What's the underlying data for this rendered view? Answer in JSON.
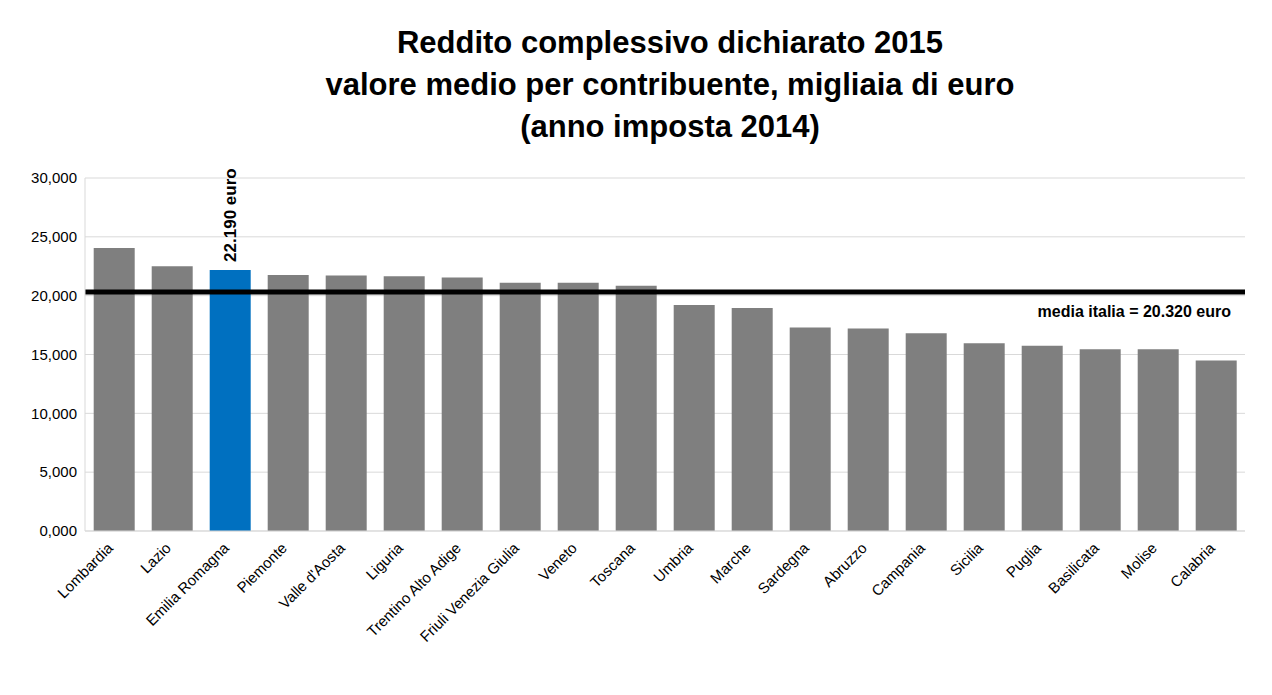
{
  "chart_data": {
    "type": "bar",
    "title": "Reddito complessivo dichiarato 2015\nvalore medio per contribuente, migliaia di euro\n(anno imposta 2014)",
    "categories": [
      "Lombardia",
      "Lazio",
      "Emilia Romagna",
      "Piemonte",
      "Valle d'Aosta",
      "Liguria",
      "Trentino Alto Adige",
      "Friuli Venezia Giulia",
      "Veneto",
      "Toscana",
      "Umbria",
      "Marche",
      "Sardegna",
      "Abruzzo",
      "Campania",
      "Sicilia",
      "Puglia",
      "Basilicata",
      "Molise",
      "Calabria"
    ],
    "values": [
      24050,
      22500,
      22190,
      21750,
      21720,
      21650,
      21550,
      21100,
      21100,
      20850,
      19200,
      18950,
      17300,
      17200,
      16800,
      15950,
      15750,
      15450,
      15450,
      14500
    ],
    "colors": [
      "#7f7f7f",
      "#7f7f7f",
      "#0070c0",
      "#7f7f7f",
      "#7f7f7f",
      "#7f7f7f",
      "#7f7f7f",
      "#7f7f7f",
      "#7f7f7f",
      "#7f7f7f",
      "#7f7f7f",
      "#7f7f7f",
      "#7f7f7f",
      "#7f7f7f",
      "#7f7f7f",
      "#7f7f7f",
      "#7f7f7f",
      "#7f7f7f",
      "#7f7f7f",
      "#7f7f7f"
    ],
    "ylim": [
      0,
      30000
    ],
    "yticks": [
      {
        "value": 0,
        "label": "0,000"
      },
      {
        "value": 5000,
        "label": "5,000"
      },
      {
        "value": 10000,
        "label": "10,000"
      },
      {
        "value": 15000,
        "label": "15,000"
      },
      {
        "value": 20000,
        "label": "20,000"
      },
      {
        "value": 25000,
        "label": "25,000"
      },
      {
        "value": 30000,
        "label": "30,000"
      }
    ],
    "grid": true,
    "reference_lines": [
      {
        "value": 20320,
        "label": "media italia = 20.320 euro"
      }
    ],
    "annotations": [
      {
        "category": "Emilia Romagna",
        "text": "22.190 euro"
      }
    ]
  }
}
